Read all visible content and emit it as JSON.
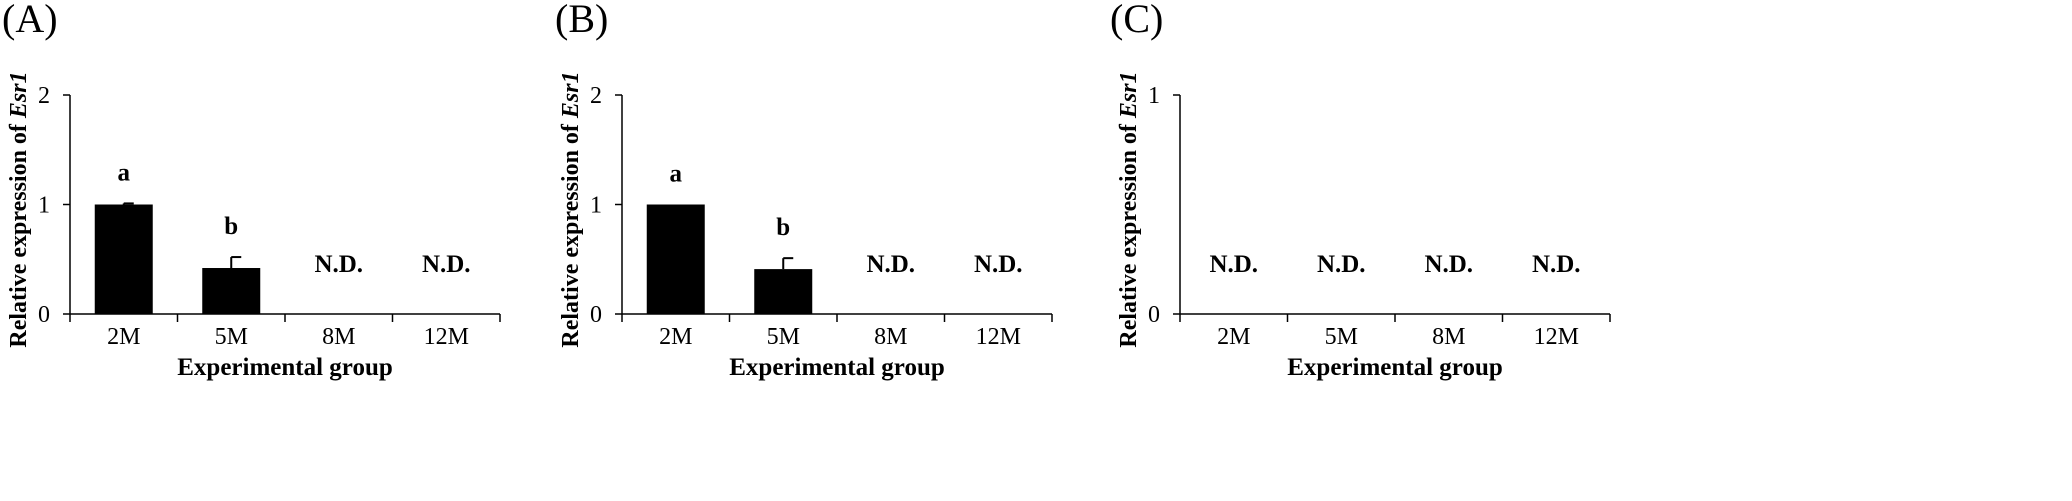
{
  "chart_data": [
    {
      "type": "bar",
      "panel_label": "(A)",
      "categories": [
        "2M",
        "5M",
        "8M",
        "12M"
      ],
      "values": [
        1.0,
        0.42,
        0,
        0
      ],
      "errors": [
        0.01,
        0.1,
        0,
        0
      ],
      "annotations": [
        "a",
        "b",
        "N.D.",
        "N.D."
      ],
      "ylabel": "Relative expression of Esr1",
      "ylabel_main": "Relative expression of ",
      "ylabel_gene": "Esr1",
      "xlabel": "Experimental group",
      "ylim": [
        0,
        2
      ],
      "yticks": [
        "0",
        "1",
        "2"
      ],
      "bar_color": "#000000",
      "grid": false
    },
    {
      "type": "bar",
      "panel_label": "(B)",
      "categories": [
        "2M",
        "5M",
        "8M",
        "12M"
      ],
      "values": [
        1.0,
        0.41,
        0,
        0
      ],
      "errors": [
        0.0,
        0.1,
        0,
        0
      ],
      "annotations": [
        "a",
        "b",
        "N.D.",
        "N.D."
      ],
      "ylabel": "Relative expression of Esr1",
      "ylabel_main": "Relative expression of ",
      "ylabel_gene": "Esr1",
      "xlabel": "Experimental group",
      "ylim": [
        0,
        2
      ],
      "yticks": [
        "0",
        "1",
        "2"
      ],
      "bar_color": "#000000",
      "grid": false
    },
    {
      "type": "bar",
      "panel_label": "(C)",
      "categories": [
        "2M",
        "5M",
        "8M",
        "12M"
      ],
      "values": [
        0,
        0,
        0,
        0
      ],
      "errors": [
        0,
        0,
        0,
        0
      ],
      "annotations": [
        "N.D.",
        "N.D.",
        "N.D.",
        "N.D."
      ],
      "ylabel": "Relative expression of Esr1",
      "ylabel_main": "Relative expression of ",
      "ylabel_gene": "Esr1",
      "xlabel": "Experimental group",
      "ylim": [
        0,
        1
      ],
      "yticks": [
        "0",
        "1"
      ],
      "bar_color": "#000000",
      "grid": false
    }
  ]
}
